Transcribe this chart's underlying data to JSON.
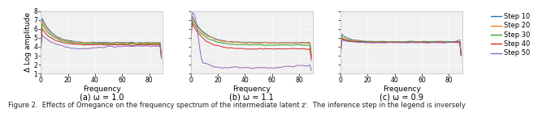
{
  "title_fontsize": 7,
  "axis_label_fontsize": 6.5,
  "tick_fontsize": 5.5,
  "legend_fontsize": 6,
  "xlabel": "Frequency",
  "ylabel": "Δ Log amplitude",
  "xlim": [
    0,
    90
  ],
  "xticks": [
    0,
    20,
    40,
    60,
    80
  ],
  "ylim": [
    1,
    8
  ],
  "yticks": [
    1,
    2,
    3,
    4,
    5,
    6,
    7,
    8
  ],
  "subtitles": [
    "(a) ω = 1.0",
    "(b) ω = 1.1",
    "(c) ω = 0.9"
  ],
  "caption": "Figure 2.  Effects of Omegance on the frequency spectrum of the intermediate latent zᴵ.  The inference step in the legend is inversely",
  "colors": [
    "#1f77b4",
    "#ff7f0e",
    "#2ca02c",
    "#d62728",
    "#9467bd"
  ],
  "line_labels": [
    "Step 10",
    "Step 20",
    "Step 30",
    "Step 40",
    "Step 50"
  ],
  "background_color": "#f0f0f0",
  "figure_background": "#ffffff",
  "fig_text_fontsize": 6.0,
  "linewidth": 0.7
}
